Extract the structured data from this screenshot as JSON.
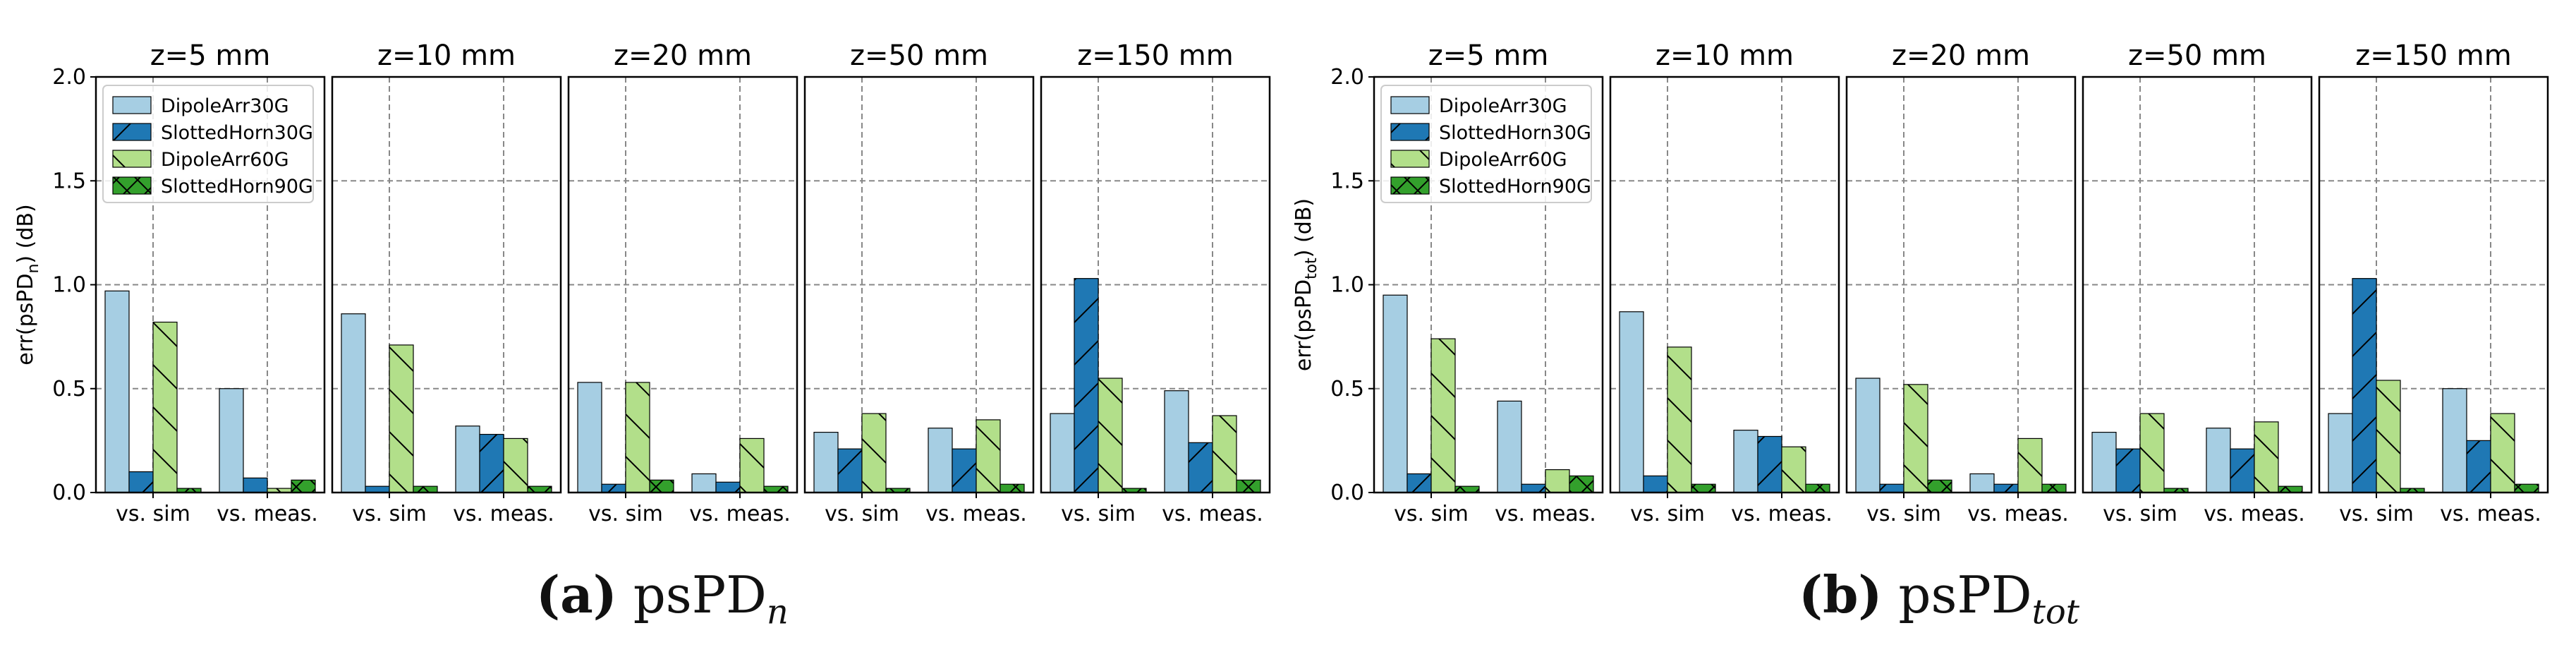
{
  "colors": {
    "DipoleArr30G": "#a6cee3",
    "SlottedHorn30G": "#1f78b4",
    "DipoleArr60G": "#b2df8a",
    "SlottedHorn90G": "#33a02c",
    "grid": "#888888",
    "axis": "#000000"
  },
  "chart_data": [
    {
      "id": "a",
      "type": "bar",
      "ylabel_main": "err(psPD",
      "ylabel_sub": "n",
      "ylabel_tail": ") (dB)",
      "ylim": [
        0,
        2.0
      ],
      "yticks": [
        "0.0",
        "0.5",
        "1.0",
        "1.5",
        "2.0"
      ],
      "ytick_values": [
        0,
        0.5,
        1.0,
        1.5,
        2.0
      ],
      "categories": [
        "vs. sim",
        "vs. meas."
      ],
      "legend_placement": "top-left of first panel",
      "series_names": [
        "DipoleArr30G",
        "SlottedHorn30G",
        "DipoleArr60G",
        "SlottedHorn90G"
      ],
      "panels": [
        {
          "title": "z=5 mm",
          "values": {
            "DipoleArr30G": [
              0.97,
              0.5
            ],
            "SlottedHorn30G": [
              0.1,
              0.07
            ],
            "DipoleArr60G": [
              0.82,
              0.02
            ],
            "SlottedHorn90G": [
              0.02,
              0.06
            ]
          }
        },
        {
          "title": "z=10 mm",
          "values": {
            "DipoleArr30G": [
              0.86,
              0.32
            ],
            "SlottedHorn30G": [
              0.03,
              0.28
            ],
            "DipoleArr60G": [
              0.71,
              0.26
            ],
            "SlottedHorn90G": [
              0.03,
              0.03
            ]
          }
        },
        {
          "title": "z=20 mm",
          "values": {
            "DipoleArr30G": [
              0.53,
              0.09
            ],
            "SlottedHorn30G": [
              0.04,
              0.05
            ],
            "DipoleArr60G": [
              0.53,
              0.26
            ],
            "SlottedHorn90G": [
              0.06,
              0.03
            ]
          }
        },
        {
          "title": "z=50 mm",
          "values": {
            "DipoleArr30G": [
              0.29,
              0.31
            ],
            "SlottedHorn30G": [
              0.21,
              0.21
            ],
            "DipoleArr60G": [
              0.38,
              0.35
            ],
            "SlottedHorn90G": [
              0.02,
              0.04
            ]
          }
        },
        {
          "title": "z=150 mm",
          "values": {
            "DipoleArr30G": [
              0.38,
              0.49
            ],
            "SlottedHorn30G": [
              1.03,
              0.24
            ],
            "DipoleArr60G": [
              0.55,
              0.37
            ],
            "SlottedHorn90G": [
              0.02,
              0.06
            ]
          }
        }
      ]
    },
    {
      "id": "b",
      "type": "bar",
      "ylabel_main": "err(psPD",
      "ylabel_sub": "tot",
      "ylabel_tail": ") (dB)",
      "ylim": [
        0,
        2.0
      ],
      "yticks": [
        "0.0",
        "0.5",
        "1.0",
        "1.5",
        "2.0"
      ],
      "ytick_values": [
        0,
        0.5,
        1.0,
        1.5,
        2.0
      ],
      "categories": [
        "vs. sim",
        "vs. meas."
      ],
      "legend_placement": "top-left of first panel",
      "series_names": [
        "DipoleArr30G",
        "SlottedHorn30G",
        "DipoleArr60G",
        "SlottedHorn90G"
      ],
      "panels": [
        {
          "title": "z=5 mm",
          "values": {
            "DipoleArr30G": [
              0.95,
              0.44
            ],
            "SlottedHorn30G": [
              0.09,
              0.04
            ],
            "DipoleArr60G": [
              0.74,
              0.11
            ],
            "SlottedHorn90G": [
              0.03,
              0.08
            ]
          }
        },
        {
          "title": "z=10 mm",
          "values": {
            "DipoleArr30G": [
              0.87,
              0.3
            ],
            "SlottedHorn30G": [
              0.08,
              0.27
            ],
            "DipoleArr60G": [
              0.7,
              0.22
            ],
            "SlottedHorn90G": [
              0.04,
              0.04
            ]
          }
        },
        {
          "title": "z=20 mm",
          "values": {
            "DipoleArr30G": [
              0.55,
              0.09
            ],
            "SlottedHorn30G": [
              0.04,
              0.04
            ],
            "DipoleArr60G": [
              0.52,
              0.26
            ],
            "SlottedHorn90G": [
              0.06,
              0.04
            ]
          }
        },
        {
          "title": "z=50 mm",
          "values": {
            "DipoleArr30G": [
              0.29,
              0.31
            ],
            "SlottedHorn30G": [
              0.21,
              0.21
            ],
            "DipoleArr60G": [
              0.38,
              0.34
            ],
            "SlottedHorn90G": [
              0.02,
              0.03
            ]
          }
        },
        {
          "title": "z=150 mm",
          "values": {
            "DipoleArr30G": [
              0.38,
              0.5
            ],
            "SlottedHorn30G": [
              1.03,
              0.25
            ],
            "DipoleArr60G": [
              0.54,
              0.38
            ],
            "SlottedHorn90G": [
              0.02,
              0.04
            ]
          }
        }
      ]
    }
  ],
  "captions": {
    "a": {
      "letter": "(a)",
      "text": "psPD",
      "sub": "n"
    },
    "b": {
      "letter": "(b)",
      "text": "psPD",
      "sub": "tot"
    }
  }
}
